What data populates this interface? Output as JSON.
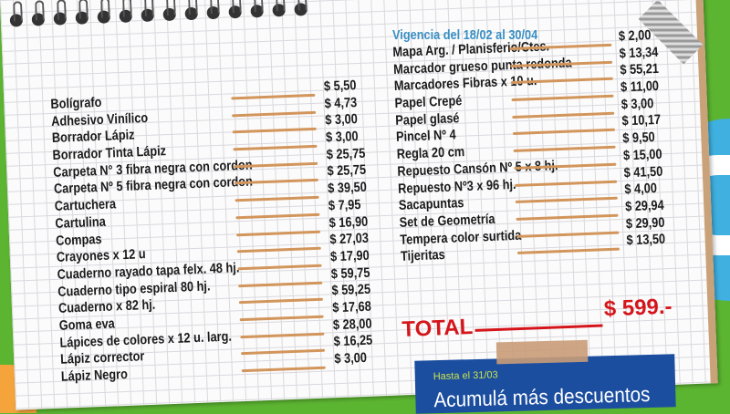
{
  "validity": "Vigencia del 18/02 al 30/04",
  "left_items": [
    {
      "name": "Bolígrafo",
      "price": "$ 5,50"
    },
    {
      "name": "Adhesivo Vinílico",
      "price": "$ 4,73"
    },
    {
      "name": "Borrador Lápiz",
      "price": "$ 3,00"
    },
    {
      "name": "Borrador Tinta Lápiz",
      "price": "$ 3,00"
    },
    {
      "name": "Carpeta N° 3 fibra negra con cordon",
      "price": "$ 25,75"
    },
    {
      "name": "Carpeta Nº 5 fibra negra con cordon",
      "price": "$ 25,75"
    },
    {
      "name": "Cartuchera",
      "price": "$ 39,50"
    },
    {
      "name": "Cartulina",
      "price": "$ 7,95"
    },
    {
      "name": "Compas",
      "price": "$ 16,90"
    },
    {
      "name": "Crayones x 12 u",
      "price": "$ 27,03"
    },
    {
      "name": "Cuaderno rayado tapa felx. 48 hj.",
      "price": "$ 17,90"
    },
    {
      "name": "Cuaderno tipo espiral 80 hj.",
      "price": "$ 59,75"
    },
    {
      "name": "Cuaderno x 82 hj.",
      "price": "$ 59,25"
    },
    {
      "name": "Goma eva",
      "price": "$ 17,68"
    },
    {
      "name": "Lápices de colores x 12 u.  larg.",
      "price": "$ 28,00"
    },
    {
      "name": "Lápiz corrector",
      "price": "$ 16,25"
    },
    {
      "name": "Lápiz Negro",
      "price": "$ 3,00"
    }
  ],
  "right_items": [
    {
      "name": "Mapa Arg. / Planisferio/Ctes.",
      "price": "$ 2,00"
    },
    {
      "name": "Marcador grueso punta redonda",
      "price": "$ 13,34"
    },
    {
      "name": "Marcadores Fibras x 10 u.",
      "price": "$ 55,21"
    },
    {
      "name": "Papel Crepé",
      "price": "$ 11,00"
    },
    {
      "name": "Papel glasé",
      "price": "$ 3,00"
    },
    {
      "name": "Pincel Nº 4",
      "price": "$ 10,17"
    },
    {
      "name": "Regla 20 cm",
      "price": "$ 9,50"
    },
    {
      "name": "Repuesto Cansón Nº 5 x 8 hj.",
      "price": "$ 15,00"
    },
    {
      "name": "Repuesto Nº3 x 96 hj.",
      "price": "$ 41,50"
    },
    {
      "name": "Sacapuntas",
      "price": "$ 4,00"
    },
    {
      "name": "Set de Geometría",
      "price": "$ 29,94"
    },
    {
      "name": "Tempera color surtida",
      "price": "$ 29,90"
    },
    {
      "name": "Tijeritas",
      "price": "$ 13,50"
    }
  ],
  "total": {
    "label": "TOTAL",
    "value": "$ 599.-"
  },
  "promo": {
    "subtitle": "Hasta el 31/03",
    "title": "Acumulá más descuentos"
  },
  "colors": {
    "background": "#5cb531",
    "line": "#d2955b",
    "total": "#d4161c",
    "validity": "#3a8fc4",
    "promo": "#1c4ea0"
  }
}
